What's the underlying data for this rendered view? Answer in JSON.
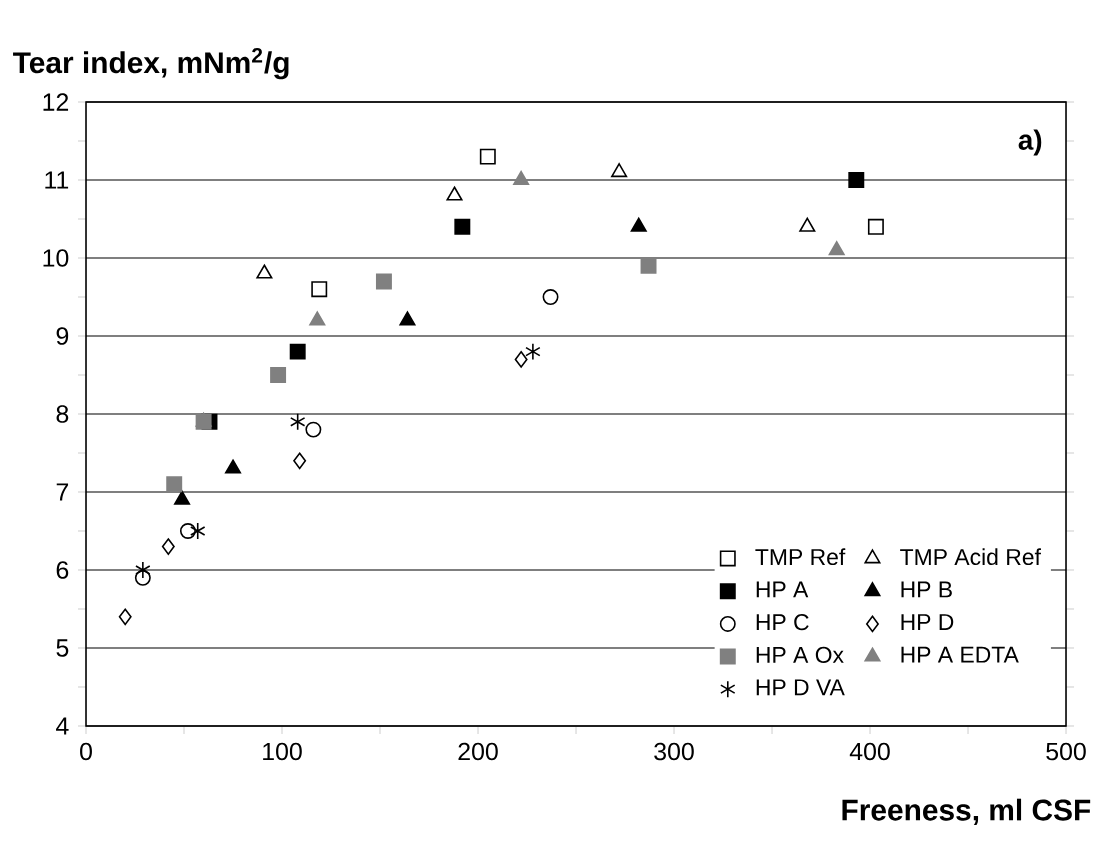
{
  "chart_data": {
    "type": "scatter",
    "ylabel": "Tear index, mNm$^{2}$/g",
    "xlabel": "Freeness, ml CSF",
    "annotations": [
      "a)"
    ],
    "xlim": [
      0,
      500
    ],
    "ylim": [
      4,
      12
    ],
    "xticks": [
      0,
      {
        "value": 50,
        "label": null
      },
      100,
      {
        "value": 150,
        "label": null
      },
      200,
      {
        "value": 250,
        "label": null
      },
      300,
      {
        "value": 350,
        "label": null
      },
      400,
      {
        "value": 450,
        "label": null
      },
      500
    ],
    "yticks": [
      4,
      {
        "value": 4.5,
        "label": null
      },
      5,
      {
        "value": 5.5,
        "label": null
      },
      6,
      {
        "value": 6.5,
        "label": null
      },
      7,
      {
        "value": 7.5,
        "label": null
      },
      8,
      {
        "value": 8.5,
        "label": null
      },
      9,
      {
        "value": 9.5,
        "label": null
      },
      10,
      {
        "value": 10.5,
        "label": null
      },
      11,
      {
        "value": 11.5,
        "label": null
      },
      12
    ],
    "grid": "y",
    "legend": "bottom right",
    "series": [
      {
        "name": "TMP Ref",
        "color": "#000000",
        "marker": "square",
        "x": [
          119,
          205,
          403
        ],
        "values": [
          9.6,
          11.3,
          10.4
        ]
      },
      {
        "name": "TMP Acid Ref",
        "color": "#000000",
        "marker": "triangle",
        "x": [
          91,
          188,
          272,
          368
        ],
        "values": [
          9.8,
          10.8,
          11.1,
          10.4
        ]
      },
      {
        "name": "HP A",
        "color": "#000000",
        "marker": "square",
        "x": [
          63,
          108,
          192,
          393
        ],
        "values": [
          7.9,
          8.8,
          10.4,
          11.0
        ]
      },
      {
        "name": "HP B",
        "color": "#000000",
        "marker": "triangle",
        "x": [
          49,
          75,
          164,
          282
        ],
        "values": [
          6.9,
          7.3,
          9.2,
          10.4
        ]
      },
      {
        "name": "HP C",
        "color": "#000000",
        "marker": "circle",
        "x": [
          29,
          52,
          116,
          237
        ],
        "values": [
          5.9,
          6.5,
          7.8,
          9.5
        ]
      },
      {
        "name": "HP D",
        "color": "#000000",
        "marker": "diamond",
        "x": [
          20,
          42,
          109,
          222
        ],
        "values": [
          5.4,
          6.3,
          7.4,
          8.7
        ]
      },
      {
        "name": "HP A Ox",
        "color": "#808080",
        "marker": "square",
        "x": [
          45,
          60,
          98,
          152,
          287
        ],
        "values": [
          7.1,
          7.9,
          8.5,
          9.7,
          9.9
        ]
      },
      {
        "name": "HP A EDTA",
        "color": "#808080",
        "marker": "triangle",
        "x": [
          60,
          118,
          222,
          383
        ],
        "values": [
          7.9,
          9.2,
          11.0,
          10.1
        ]
      },
      {
        "name": "HP D VA",
        "color": "#000000",
        "marker": "cross",
        "x": [
          29,
          57,
          108,
          228
        ],
        "values": [
          6.0,
          6.5,
          7.9,
          8.8
        ]
      }
    ]
  }
}
